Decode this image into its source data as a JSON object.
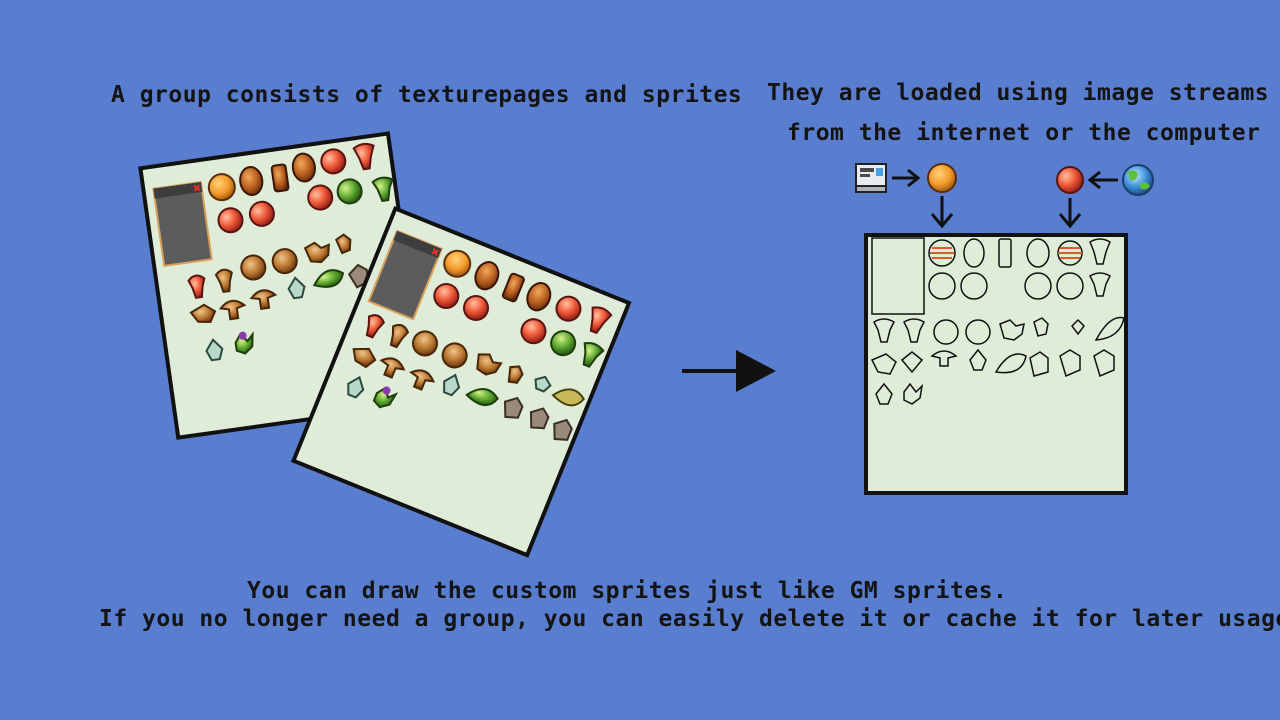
{
  "captions": {
    "group_intro": "A group consists of texturepages and sprites",
    "streams_line1": "They are loaded using image streams",
    "streams_line2": "from the internet or the computer",
    "bottom_line1": "You can draw the custom sprites just like GM sprites.",
    "bottom_line2": "If you no longer need a group, you can easily delete it or cache it for later usage."
  },
  "colors": {
    "background": "#5a7ecf",
    "page_fill": "#dfecd8",
    "outline": "#111111",
    "panel_fill": "#5c5c5c",
    "panel_border": "#d9a25c"
  },
  "icons": [
    "computer-icon",
    "orange-icon",
    "apple-icon",
    "globe-icon",
    "close-icon",
    "arrow-right-icon",
    "arrow-left-icon",
    "arrow-down-icon"
  ]
}
